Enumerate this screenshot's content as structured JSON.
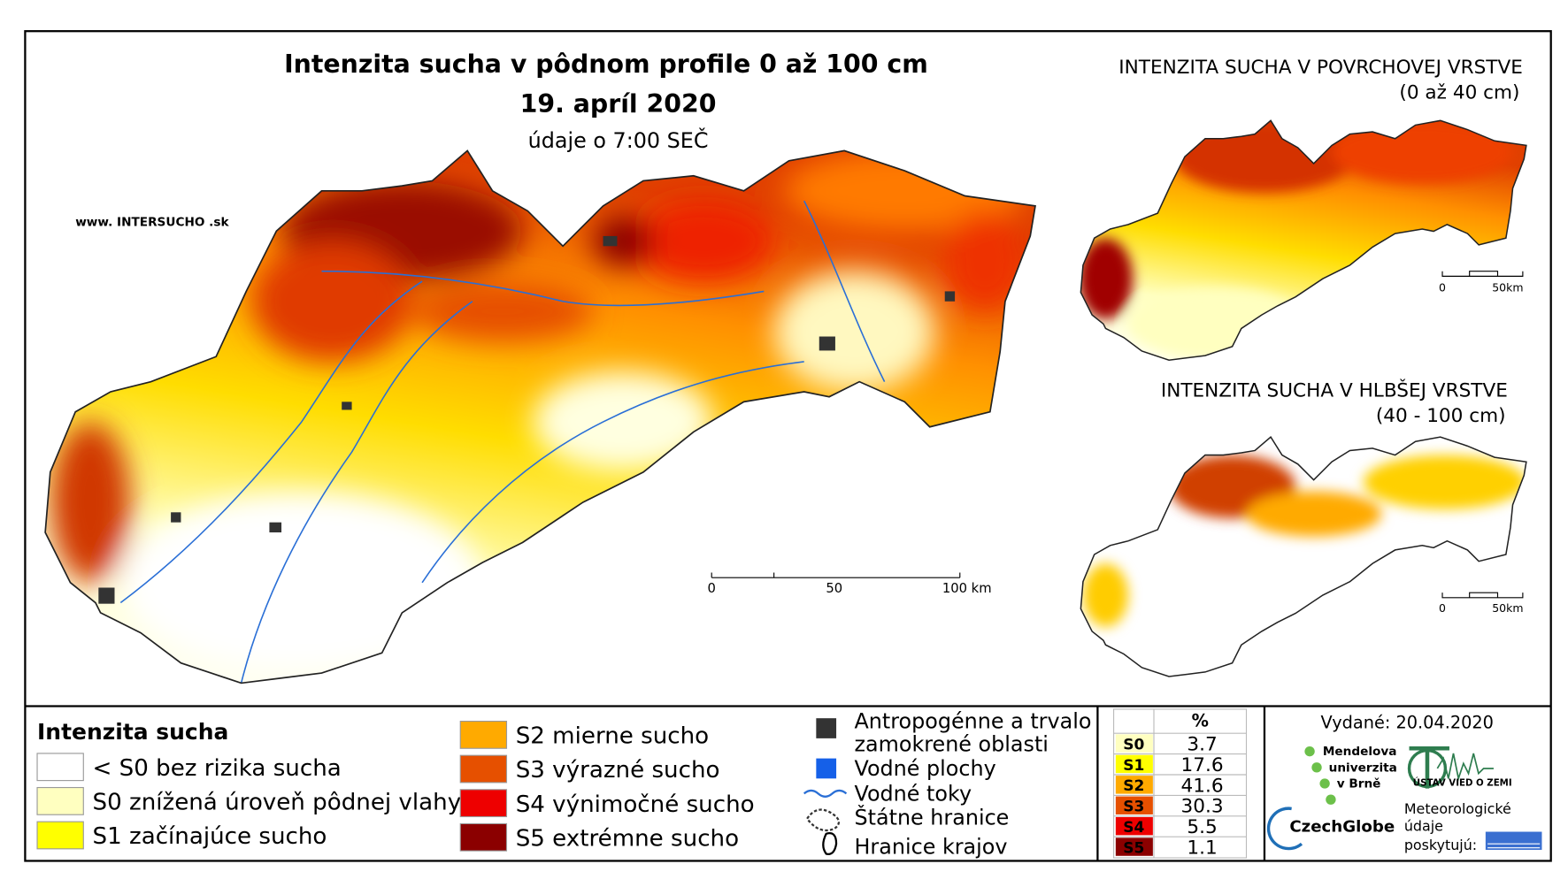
{
  "header": {
    "title": "Intenzita sucha v pôdnom profile 0 až 100 cm",
    "date": "19. apríl 2020",
    "time_note": "údaje o 7:00 SEČ",
    "website": "www. INTERSUCHO .sk"
  },
  "main_map": {
    "scale_labels": [
      "0",
      "50",
      "100 km"
    ]
  },
  "inset_top": {
    "title": "INTENZITA SUCHA V POVRCHOVEJ VRSTVE",
    "subtitle": "(0 až 40 cm)",
    "scale_labels": [
      "0",
      "50km"
    ]
  },
  "inset_bottom": {
    "title": "INTENZITA SUCHA V HLBŠEJ VRSTVE",
    "subtitle": "(40 - 100 cm)",
    "scale_labels": [
      "0",
      "50km"
    ]
  },
  "legend": {
    "title": "Intenzita sucha",
    "classes": [
      {
        "label": "< S0 bez rizika sucha",
        "color": "#ffffff"
      },
      {
        "label": "S0 znížená úroveň pôdnej vlahy",
        "color": "#ffffc0"
      },
      {
        "label": "S1 začínajúce sucho",
        "color": "#ffff00"
      },
      {
        "label": "S2 mierne sucho",
        "color": "#ffaa00"
      },
      {
        "label": "S3 výrazné sucho",
        "color": "#e65000"
      },
      {
        "label": "S4 výnimočné sucho",
        "color": "#ee0000"
      },
      {
        "label": "S5 extrémne sucho",
        "color": "#8b0000"
      }
    ],
    "other": {
      "anthropogenic": [
        "Antropogénne a trvalo",
        "zamokrené oblasti"
      ],
      "water_bodies": "Vodné plochy",
      "rivers": "Vodné toky",
      "state_border": "Štátne hranice",
      "region_border": "Hranice krajov"
    }
  },
  "stats": {
    "header": "%",
    "rows": [
      {
        "code": "S0",
        "value": 3.7,
        "color": "#ffffc0"
      },
      {
        "code": "S1",
        "value": 17.6,
        "color": "#ffff00"
      },
      {
        "code": "S2",
        "value": 41.6,
        "color": "#ffaa00"
      },
      {
        "code": "S3",
        "value": 30.3,
        "color": "#e65000"
      },
      {
        "code": "S4",
        "value": 5.5,
        "color": "#ee0000"
      },
      {
        "code": "S5",
        "value": 1.1,
        "color": "#8b0000"
      }
    ]
  },
  "footer": {
    "issued": "Vydané: 20.04.2020",
    "mendel": [
      "Mendelova",
      "univerzita",
      "v Brně"
    ],
    "uvz": "ÚSTAV VIED O ZEMI",
    "czechglobe": "CzechGlobe",
    "provided": [
      "Meteorologické",
      "údaje",
      "poskytujú:"
    ]
  }
}
